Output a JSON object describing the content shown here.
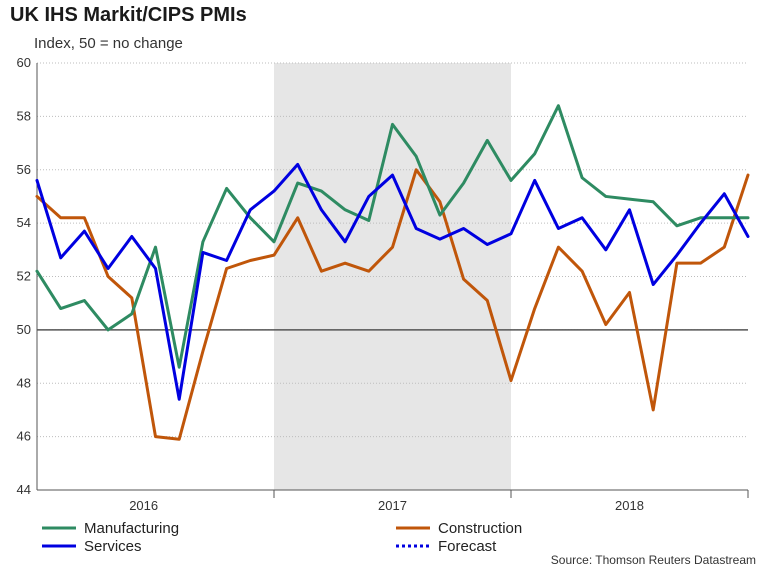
{
  "chart_data": {
    "type": "line",
    "title": "UK IHS Markit/CIPS PMIs",
    "subtitle": "Index, 50 = no change",
    "source": "Source: Thomson Reuters Datastream",
    "ylim": [
      44,
      60
    ],
    "yticks": [
      44,
      46,
      48,
      50,
      52,
      54,
      56,
      58,
      60
    ],
    "xlim": [
      0,
      30
    ],
    "year_labels": [
      {
        "label": "2016",
        "x": 4.5
      },
      {
        "label": "2017",
        "x": 15
      },
      {
        "label": "2018",
        "x": 25
      }
    ],
    "year_boundaries": [
      10,
      20
    ],
    "shaded_range": [
      10,
      20
    ],
    "reference_line": 50,
    "series": [
      {
        "name": "Manufacturing",
        "color": "#2e8b62",
        "style": "solid",
        "x": [
          0,
          1,
          2,
          3,
          4,
          5,
          6,
          7,
          8,
          9,
          10,
          11,
          12,
          13,
          14,
          15,
          16,
          17,
          18,
          19,
          20,
          21,
          22,
          23,
          24,
          25,
          26,
          27,
          28,
          29,
          30
        ],
        "values": [
          52.2,
          50.8,
          51.1,
          50.0,
          50.6,
          53.1,
          48.6,
          53.3,
          55.3,
          54.2,
          53.3,
          55.5,
          55.2,
          54.5,
          54.1,
          57.7,
          56.5,
          54.3,
          55.5,
          57.1,
          55.6,
          56.6,
          58.4,
          55.7,
          55.0,
          54.9,
          54.8,
          53.9,
          54.2,
          54.2,
          54.2
        ]
      },
      {
        "name": "Services",
        "color": "#0000e0",
        "style": "solid",
        "x": [
          0,
          1,
          2,
          3,
          4,
          5,
          6,
          7,
          8,
          9,
          10,
          11,
          12,
          13,
          14,
          15,
          16,
          17,
          18,
          19,
          20,
          21,
          22,
          23,
          24,
          25,
          26,
          27,
          28,
          29,
          30
        ],
        "values": [
          55.6,
          52.7,
          53.7,
          52.3,
          53.5,
          52.3,
          47.4,
          52.9,
          52.6,
          54.5,
          55.2,
          56.2,
          54.5,
          53.3,
          55.0,
          55.8,
          53.8,
          53.4,
          53.8,
          53.2,
          53.6,
          55.6,
          53.8,
          54.2,
          53.0,
          54.5,
          51.7,
          52.8,
          54.0,
          55.1,
          53.5
        ]
      },
      {
        "name": "Construction",
        "color": "#c0560a",
        "style": "solid",
        "x": [
          0,
          1,
          2,
          3,
          4,
          5,
          6,
          7,
          8,
          9,
          10,
          11,
          12,
          13,
          14,
          15,
          16,
          17,
          18,
          19,
          20,
          21,
          22,
          23,
          24,
          25,
          26,
          27,
          28,
          29,
          30
        ],
        "values": [
          55.0,
          54.2,
          54.2,
          52.0,
          51.2,
          46.0,
          45.9,
          49.2,
          52.3,
          52.6,
          52.8,
          54.2,
          52.2,
          52.5,
          52.2,
          53.1,
          56.0,
          54.8,
          51.9,
          51.1,
          48.1,
          50.8,
          53.1,
          52.2,
          50.2,
          51.4,
          47.0,
          52.5,
          52.5,
          53.1,
          55.8
        ]
      },
      {
        "name": "Forecast",
        "color": "#0000e0",
        "style": "dotted",
        "x": [],
        "values": []
      }
    ]
  }
}
